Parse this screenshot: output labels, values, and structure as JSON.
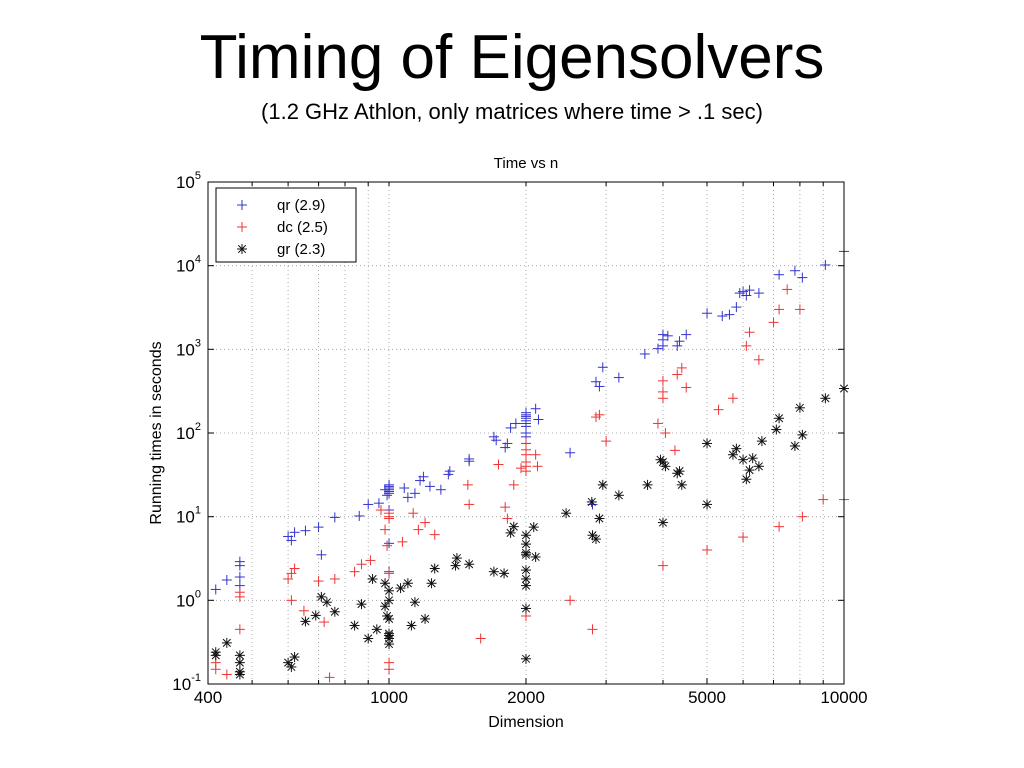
{
  "slide": {
    "title": "Timing of Eigensolvers",
    "subtitle": "(1.2 GHz Athlon, only matrices where time > .1 sec)"
  },
  "chart_data": {
    "type": "scatter",
    "title": "Time vs n",
    "xlabel": "Dimension",
    "ylabel": "Running times in seconds",
    "x_scale": "log",
    "y_scale": "log",
    "xlim": [
      400,
      10000
    ],
    "ylim": [
      0.1,
      100000
    ],
    "x_ticks": [
      400,
      1000,
      2000,
      5000,
      10000
    ],
    "x_tick_labels": [
      "400",
      "1000",
      "2000",
      "5000",
      "10000"
    ],
    "y_ticks": [
      0.1,
      1,
      10,
      100,
      1000,
      10000,
      100000
    ],
    "y_tick_labels": [
      {
        "base": "10",
        "exp": "-1"
      },
      {
        "base": "10",
        "exp": "0"
      },
      {
        "base": "10",
        "exp": "1"
      },
      {
        "base": "10",
        "exp": "2"
      },
      {
        "base": "10",
        "exp": "3"
      },
      {
        "base": "10",
        "exp": "4"
      },
      {
        "base": "10",
        "exp": "5"
      }
    ],
    "grid": true,
    "legend_position": "top-left",
    "series": [
      {
        "name": "qr (2.9)",
        "marker": "+",
        "color": "#3333cc",
        "points": [
          [
            416,
            1.35
          ],
          [
            440,
            1.75
          ],
          [
            470,
            2.6
          ],
          [
            470,
            2.9
          ],
          [
            470,
            1.9
          ],
          [
            470,
            1.5
          ],
          [
            600,
            5.8
          ],
          [
            610,
            5.2
          ],
          [
            620,
            6.5
          ],
          [
            655,
            6.8
          ],
          [
            700,
            7.5
          ],
          [
            710,
            3.5
          ],
          [
            760,
            9.8
          ],
          [
            860,
            10.2
          ],
          [
            900,
            14
          ],
          [
            950,
            14.5
          ],
          [
            980,
            21
          ],
          [
            990,
            18
          ],
          [
            1000,
            24
          ],
          [
            1000,
            23
          ],
          [
            1000,
            22
          ],
          [
            1000,
            21
          ],
          [
            1000,
            20
          ],
          [
            1000,
            19
          ],
          [
            1000,
            12
          ],
          [
            1000,
            4.8
          ],
          [
            1000,
            2.2
          ],
          [
            1080,
            22
          ],
          [
            1100,
            17
          ],
          [
            1140,
            19
          ],
          [
            1170,
            27
          ],
          [
            1190,
            30
          ],
          [
            1230,
            23
          ],
          [
            1300,
            21
          ],
          [
            1350,
            32
          ],
          [
            1360,
            35
          ],
          [
            1500,
            46
          ],
          [
            1500,
            49
          ],
          [
            1700,
            90
          ],
          [
            1720,
            82
          ],
          [
            1800,
            67
          ],
          [
            1820,
            75
          ],
          [
            1850,
            115
          ],
          [
            1900,
            130
          ],
          [
            2000,
            175
          ],
          [
            2000,
            165
          ],
          [
            2000,
            158
          ],
          [
            2000,
            150
          ],
          [
            2000,
            140
          ],
          [
            2000,
            130
          ],
          [
            2000,
            120
          ],
          [
            2000,
            100
          ],
          [
            2000,
            90
          ],
          [
            2000,
            75
          ],
          [
            2100,
            195
          ],
          [
            2130,
            145
          ],
          [
            2500,
            58
          ],
          [
            2800,
            14
          ],
          [
            2850,
            410
          ],
          [
            2900,
            360
          ],
          [
            2950,
            610
          ],
          [
            3200,
            460
          ],
          [
            3650,
            880
          ],
          [
            3900,
            1020
          ],
          [
            4000,
            1500
          ],
          [
            4000,
            1300
          ],
          [
            4000,
            1100
          ],
          [
            4100,
            1450
          ],
          [
            4300,
            1100
          ],
          [
            4350,
            1250
          ],
          [
            4500,
            1500
          ],
          [
            5000,
            2700
          ],
          [
            5400,
            2500
          ],
          [
            5600,
            2600
          ],
          [
            5800,
            3200
          ],
          [
            5900,
            4700
          ],
          [
            6000,
            4900
          ],
          [
            6100,
            4400
          ],
          [
            6200,
            5100
          ],
          [
            6500,
            4700
          ],
          [
            7200,
            7800
          ],
          [
            7800,
            8700
          ],
          [
            8100,
            7200
          ],
          [
            9100,
            10200
          ],
          [
            10000,
            14800
          ]
        ]
      },
      {
        "name": "dc (2.5)",
        "marker": "+",
        "color": "#ee3333",
        "points": [
          [
            416,
            0.15
          ],
          [
            416,
            0.18
          ],
          [
            440,
            0.13
          ],
          [
            470,
            1.25
          ],
          [
            470,
            1.1
          ],
          [
            470,
            0.45
          ],
          [
            600,
            1.8
          ],
          [
            610,
            2.1
          ],
          [
            610,
            1.0
          ],
          [
            620,
            2.4
          ],
          [
            650,
            0.75
          ],
          [
            700,
            1.7
          ],
          [
            720,
            0.55
          ],
          [
            740,
            0.12
          ],
          [
            760,
            1.8
          ],
          [
            840,
            2.2
          ],
          [
            870,
            2.7
          ],
          [
            910,
            3.0
          ],
          [
            960,
            12
          ],
          [
            980,
            7.0
          ],
          [
            990,
            4.5
          ],
          [
            1000,
            11
          ],
          [
            1000,
            10
          ],
          [
            1000,
            9.5
          ],
          [
            1000,
            2.1
          ],
          [
            1000,
            0.18
          ],
          [
            1000,
            0.15
          ],
          [
            1070,
            5.0
          ],
          [
            1130,
            11
          ],
          [
            1160,
            7.0
          ],
          [
            1200,
            8.5
          ],
          [
            1260,
            6.1
          ],
          [
            1490,
            24
          ],
          [
            1500,
            14
          ],
          [
            1590,
            0.35
          ],
          [
            1740,
            42
          ],
          [
            1800,
            13
          ],
          [
            1820,
            9.5
          ],
          [
            1880,
            24
          ],
          [
            1950,
            38
          ],
          [
            2000,
            75
          ],
          [
            2000,
            63
          ],
          [
            2000,
            55
          ],
          [
            2000,
            45
          ],
          [
            2000,
            40
          ],
          [
            2000,
            35
          ],
          [
            2000,
            0.65
          ],
          [
            2100,
            55
          ],
          [
            2120,
            40
          ],
          [
            2500,
            1.0
          ],
          [
            2800,
            0.45
          ],
          [
            2850,
            155
          ],
          [
            2900,
            165
          ],
          [
            3000,
            80
          ],
          [
            3900,
            130
          ],
          [
            4000,
            420
          ],
          [
            4000,
            310
          ],
          [
            4000,
            260
          ],
          [
            4000,
            2.6
          ],
          [
            4050,
            100
          ],
          [
            4250,
            62
          ],
          [
            4300,
            500
          ],
          [
            4400,
            600
          ],
          [
            4500,
            350
          ],
          [
            5000,
            4.0
          ],
          [
            5300,
            190
          ],
          [
            5700,
            260
          ],
          [
            6000,
            5.7
          ],
          [
            6100,
            1100
          ],
          [
            6200,
            1600
          ],
          [
            6500,
            750
          ],
          [
            7000,
            2100
          ],
          [
            7200,
            3000
          ],
          [
            7500,
            5200
          ],
          [
            7200,
            7.6
          ],
          [
            8000,
            3000
          ],
          [
            8100,
            10
          ],
          [
            9000,
            16
          ],
          [
            10000,
            16
          ]
        ]
      },
      {
        "name": "gr (2.3)",
        "marker": "*",
        "color": "#111111",
        "points": [
          [
            416,
            0.22
          ],
          [
            416,
            0.24
          ],
          [
            440,
            0.31
          ],
          [
            470,
            0.22
          ],
          [
            470,
            0.18
          ],
          [
            470,
            0.14
          ],
          [
            470,
            0.13
          ],
          [
            600,
            0.18
          ],
          [
            610,
            0.16
          ],
          [
            620,
            0.21
          ],
          [
            655,
            0.56
          ],
          [
            690,
            0.66
          ],
          [
            710,
            1.1
          ],
          [
            730,
            0.95
          ],
          [
            760,
            0.73
          ],
          [
            840,
            0.5
          ],
          [
            870,
            0.9
          ],
          [
            900,
            0.35
          ],
          [
            920,
            1.8
          ],
          [
            940,
            0.45
          ],
          [
            980,
            1.6
          ],
          [
            980,
            0.85
          ],
          [
            990,
            0.65
          ],
          [
            1000,
            1.3
          ],
          [
            1000,
            1.0
          ],
          [
            1000,
            0.6
          ],
          [
            1000,
            0.4
          ],
          [
            1000,
            0.38
          ],
          [
            1000,
            0.35
          ],
          [
            1000,
            0.3
          ],
          [
            1060,
            1.4
          ],
          [
            1100,
            1.6
          ],
          [
            1120,
            0.5
          ],
          [
            1140,
            0.95
          ],
          [
            1200,
            0.6
          ],
          [
            1240,
            1.6
          ],
          [
            1260,
            2.4
          ],
          [
            1400,
            2.6
          ],
          [
            1410,
            3.2
          ],
          [
            1500,
            2.7
          ],
          [
            1700,
            2.2
          ],
          [
            1790,
            2.1
          ],
          [
            1850,
            6.4
          ],
          [
            1880,
            7.6
          ],
          [
            2000,
            6.0
          ],
          [
            2000,
            4.7
          ],
          [
            2000,
            3.7
          ],
          [
            2000,
            3.5
          ],
          [
            2000,
            2.3
          ],
          [
            2000,
            1.8
          ],
          [
            2000,
            1.5
          ],
          [
            2000,
            0.8
          ],
          [
            2000,
            0.2
          ],
          [
            2080,
            7.5
          ],
          [
            2100,
            3.3
          ],
          [
            2450,
            11
          ],
          [
            2790,
            15
          ],
          [
            2800,
            6.0
          ],
          [
            2850,
            5.4
          ],
          [
            2900,
            9.5
          ],
          [
            2950,
            24
          ],
          [
            3200,
            18
          ],
          [
            3700,
            24
          ],
          [
            3950,
            48
          ],
          [
            4000,
            45
          ],
          [
            4000,
            8.5
          ],
          [
            4050,
            40
          ],
          [
            4300,
            33
          ],
          [
            4350,
            35
          ],
          [
            4400,
            24
          ],
          [
            5000,
            75
          ],
          [
            5000,
            14
          ],
          [
            5700,
            55
          ],
          [
            5800,
            65
          ],
          [
            6000,
            48
          ],
          [
            6100,
            28
          ],
          [
            6200,
            36
          ],
          [
            6300,
            50
          ],
          [
            6500,
            40
          ],
          [
            6600,
            80
          ],
          [
            7100,
            110
          ],
          [
            7200,
            150
          ],
          [
            7800,
            70
          ],
          [
            8000,
            200
          ],
          [
            8100,
            95
          ],
          [
            9100,
            260
          ],
          [
            10000,
            340
          ]
        ]
      }
    ]
  }
}
